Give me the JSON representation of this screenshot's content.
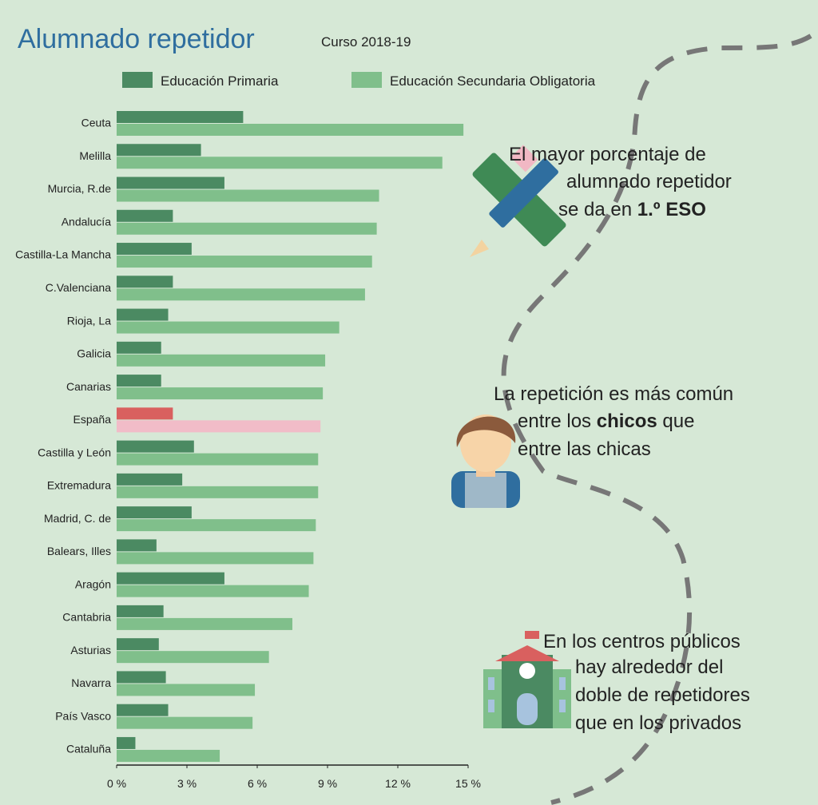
{
  "chart_data": {
    "type": "bar",
    "orientation": "horizontal",
    "title": "Alumnado repetidor",
    "subtitle": "Curso 2018-19",
    "categories": [
      "Ceuta",
      "Melilla",
      "Murcia, R.de",
      "Andalucía",
      "Castilla-La Mancha",
      "C.Valenciana",
      "Rioja, La",
      "Galicia",
      "Canarias",
      "España",
      "Castilla y León",
      "Extremadura",
      "Madrid, C. de",
      "Balears, Illes",
      "Aragón",
      "Cantabria",
      "Asturias",
      "Navarra",
      "País Vasco",
      "Cataluña"
    ],
    "series": [
      {
        "name": "Educación Primaria",
        "color": "#4b8a62",
        "highlight_color": "#d9605f",
        "values": [
          5.4,
          3.6,
          4.6,
          2.4,
          3.2,
          2.4,
          2.2,
          1.9,
          1.9,
          2.4,
          3.3,
          2.8,
          3.2,
          1.7,
          4.6,
          2.0,
          1.8,
          2.1,
          2.2,
          0.8
        ]
      },
      {
        "name": "Educación Secundaria Obligatoria",
        "color": "#80bf8b",
        "highlight_color": "#f1bcc8",
        "values": [
          14.8,
          13.9,
          11.2,
          11.1,
          10.9,
          10.6,
          9.5,
          8.9,
          8.8,
          8.7,
          8.6,
          8.6,
          8.5,
          8.4,
          8.2,
          7.5,
          6.5,
          5.9,
          5.8,
          4.4
        ]
      }
    ],
    "highlight": "España",
    "xlim": [
      0,
      15
    ],
    "xticks": [
      {
        "value": 0,
        "label": "0 %"
      },
      {
        "value": 3,
        "label": "3 %"
      },
      {
        "value": 6,
        "label": "6 %"
      },
      {
        "value": 9,
        "label": "9 %"
      },
      {
        "value": 12,
        "label": "12 %"
      },
      {
        "value": 15,
        "label": "15 %"
      }
    ]
  },
  "annotations": [
    {
      "lines": [
        "El mayor porcentaje de",
        "alumnado repetidor"
      ],
      "last": {
        "text": "se da en ",
        "bold": "1.º ESO"
      }
    },
    {
      "first": "La repetición es más común",
      "middle": {
        "text": "entre los ",
        "bold": "chicos",
        "after": " que"
      },
      "last": "entre las chicas"
    },
    {
      "lines": [
        "En los centros públicos",
        "hay alrededor del",
        "doble de repetidores",
        "que en los privados"
      ]
    }
  ]
}
